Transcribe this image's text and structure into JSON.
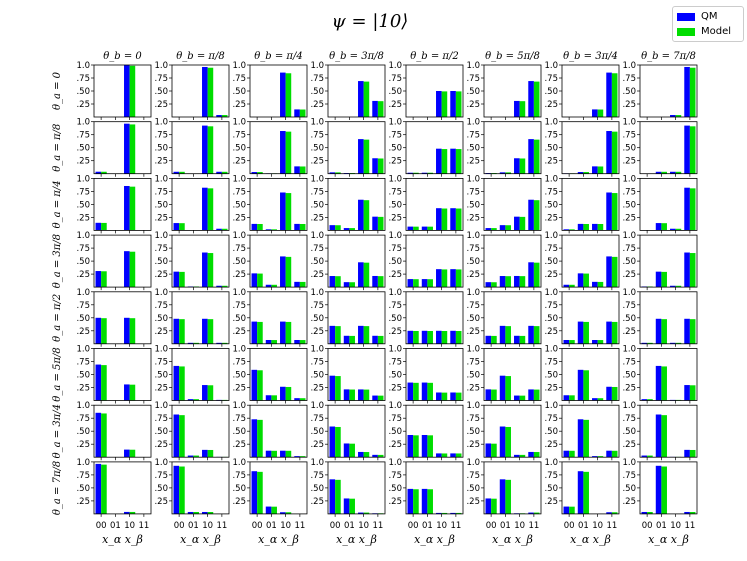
{
  "chart_data": {
    "type": "bar",
    "title": "ψ = |10⟩",
    "column_titles": [
      "θ_b = 0",
      "θ_b = π/8",
      "θ_b = π/4",
      "θ_b = 3π/8",
      "θ_b = π/2",
      "θ_b = 5π/8",
      "θ_b = 3π/4",
      "θ_b = 7π/8"
    ],
    "row_titles": [
      "θ_a = 0",
      "θ_a = π/8",
      "θ_a = π/4",
      "θ_a = 3π/8",
      "θ_a = π/2",
      "θ_a = 5π/8",
      "θ_a = 3π/4",
      "θ_a = 7π/8"
    ],
    "categories": [
      "00",
      "01",
      "10",
      "11"
    ],
    "xlabel": "x_α x_β",
    "ylim": [
      0,
      1.0
    ],
    "yticks": [
      0.25,
      0.5,
      0.75,
      1.0
    ],
    "ytick_labels": [
      ".25",
      ".50",
      ".75",
      "1.0"
    ],
    "series_names": [
      "QM",
      "Model"
    ],
    "series_colors": [
      "#0000ff",
      "#00dd00"
    ],
    "grid_values": [
      [
        [
          0,
          0,
          1,
          0
        ],
        [
          0,
          0,
          0.962,
          0.038
        ],
        [
          0,
          0,
          0.854,
          0.146
        ],
        [
          0,
          0,
          0.691,
          0.309
        ],
        [
          0,
          0,
          0.5,
          0.5
        ],
        [
          0,
          0,
          0.309,
          0.691
        ],
        [
          0,
          0,
          0.146,
          0.854
        ],
        [
          0,
          0,
          0.038,
          0.962
        ]
      ],
      [
        [
          0.038,
          0,
          0.962,
          0
        ],
        [
          0.037,
          0.001,
          0.925,
          0.037
        ],
        [
          0.032,
          0.006,
          0.821,
          0.141
        ],
        [
          0.026,
          0.012,
          0.665,
          0.297
        ],
        [
          0.019,
          0.019,
          0.481,
          0.481
        ],
        [
          0.012,
          0.026,
          0.297,
          0.665
        ],
        [
          0.006,
          0.032,
          0.141,
          0.821
        ],
        [
          0.001,
          0.037,
          0.037,
          0.925
        ]
      ],
      [
        [
          0.146,
          0,
          0.854,
          0
        ],
        [
          0.141,
          0.006,
          0.821,
          0.032
        ],
        [
          0.125,
          0.021,
          0.729,
          0.125
        ],
        [
          0.101,
          0.045,
          0.59,
          0.264
        ],
        [
          0.073,
          0.073,
          0.427,
          0.427
        ],
        [
          0.045,
          0.101,
          0.264,
          0.59
        ],
        [
          0.021,
          0.125,
          0.125,
          0.729
        ],
        [
          0.006,
          0.141,
          0.032,
          0.821
        ]
      ],
      [
        [
          0.309,
          0,
          0.691,
          0
        ],
        [
          0.297,
          0.012,
          0.665,
          0.026
        ],
        [
          0.264,
          0.045,
          0.59,
          0.101
        ],
        [
          0.213,
          0.095,
          0.477,
          0.214
        ],
        [
          0.154,
          0.154,
          0.345,
          0.345
        ],
        [
          0.095,
          0.213,
          0.214,
          0.477
        ],
        [
          0.045,
          0.264,
          0.101,
          0.59
        ],
        [
          0.012,
          0.297,
          0.026,
          0.665
        ]
      ],
      [
        [
          0.5,
          0,
          0.5,
          0
        ],
        [
          0.481,
          0.019,
          0.481,
          0.019
        ],
        [
          0.427,
          0.073,
          0.427,
          0.073
        ],
        [
          0.345,
          0.154,
          0.345,
          0.154
        ],
        [
          0.25,
          0.25,
          0.25,
          0.25
        ],
        [
          0.154,
          0.345,
          0.154,
          0.345
        ],
        [
          0.073,
          0.427,
          0.073,
          0.427
        ],
        [
          0.019,
          0.481,
          0.019,
          0.481
        ]
      ],
      [
        [
          0.691,
          0,
          0.309,
          0
        ],
        [
          0.665,
          0.026,
          0.297,
          0.012
        ],
        [
          0.59,
          0.101,
          0.264,
          0.045
        ],
        [
          0.477,
          0.214,
          0.213,
          0.095
        ],
        [
          0.345,
          0.345,
          0.154,
          0.154
        ],
        [
          0.214,
          0.477,
          0.095,
          0.213
        ],
        [
          0.101,
          0.59,
          0.045,
          0.264
        ],
        [
          0.026,
          0.665,
          0.012,
          0.297
        ]
      ],
      [
        [
          0.854,
          0,
          0.146,
          0
        ],
        [
          0.821,
          0.032,
          0.141,
          0.006
        ],
        [
          0.729,
          0.125,
          0.125,
          0.021
        ],
        [
          0.59,
          0.264,
          0.101,
          0.045
        ],
        [
          0.427,
          0.427,
          0.073,
          0.073
        ],
        [
          0.264,
          0.59,
          0.045,
          0.101
        ],
        [
          0.125,
          0.729,
          0.021,
          0.125
        ],
        [
          0.032,
          0.821,
          0.006,
          0.141
        ]
      ],
      [
        [
          0.962,
          0,
          0.038,
          0
        ],
        [
          0.925,
          0.037,
          0.037,
          0.001
        ],
        [
          0.821,
          0.141,
          0.032,
          0.006
        ],
        [
          0.665,
          0.297,
          0.026,
          0.012
        ],
        [
          0.481,
          0.481,
          0.019,
          0.019
        ],
        [
          0.297,
          0.665,
          0.012,
          0.026
        ],
        [
          0.141,
          0.821,
          0.006,
          0.032
        ],
        [
          0.037,
          0.925,
          0.001,
          0.037
        ]
      ]
    ]
  }
}
